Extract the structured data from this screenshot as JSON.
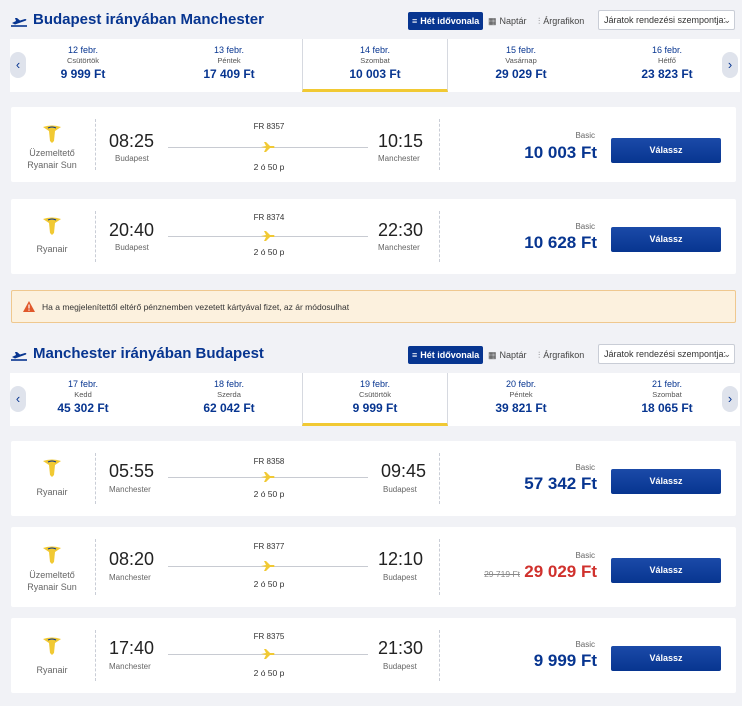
{
  "sections": [
    {
      "title": "Budapest irányában Manchester",
      "views": [
        "Hét idővonala",
        "Naptár",
        "Árgrafikon"
      ],
      "sort_label": "Járatok rendezési szempontja:",
      "dates": [
        {
          "date": "12 febr.",
          "weekday": "Csütörtök",
          "price": "9 999 Ft"
        },
        {
          "date": "13 febr.",
          "weekday": "Péntek",
          "price": "17 409 Ft"
        },
        {
          "date": "14 febr.",
          "weekday": "Szombat",
          "price": "10 003 Ft"
        },
        {
          "date": "15 febr.",
          "weekday": "Vasárnap",
          "price": "29 029 Ft"
        },
        {
          "date": "16 febr.",
          "weekday": "Hétfő",
          "price": "23 823 Ft"
        }
      ],
      "selected_date_index": 2,
      "flights": [
        {
          "operator_line1": "Üzemeltető",
          "operator_line2": "Ryanair Sun",
          "dep_time": "08:25",
          "dep_city": "Budapest",
          "flight_no": "FR 8357",
          "duration": "2 ó 50 p",
          "arr_time": "10:15",
          "arr_city": "Manchester",
          "fare": "Basic",
          "price": "10 003 Ft",
          "old_price": "",
          "button": "Válassz"
        },
        {
          "operator_line1": "",
          "operator_line2": "Ryanair",
          "dep_time": "20:40",
          "dep_city": "Budapest",
          "flight_no": "FR 8374",
          "duration": "2 ó 50 p",
          "arr_time": "22:30",
          "arr_city": "Manchester",
          "fare": "Basic",
          "price": "10 628 Ft",
          "old_price": "",
          "button": "Válassz"
        }
      ]
    },
    {
      "title": "Manchester irányában Budapest",
      "views": [
        "Hét idővonala",
        "Naptár",
        "Árgrafikon"
      ],
      "sort_label": "Járatok rendezési szempontja:",
      "dates": [
        {
          "date": "17 febr.",
          "weekday": "Kedd",
          "price": "45 302 Ft"
        },
        {
          "date": "18 febr.",
          "weekday": "Szerda",
          "price": "62 042 Ft"
        },
        {
          "date": "19 febr.",
          "weekday": "Csütörtök",
          "price": "9 999 Ft"
        },
        {
          "date": "20 febr.",
          "weekday": "Péntek",
          "price": "39 821 Ft"
        },
        {
          "date": "21 febr.",
          "weekday": "Szombat",
          "price": "18 065 Ft"
        }
      ],
      "selected_date_index": 2,
      "flights": [
        {
          "operator_line1": "",
          "operator_line2": "Ryanair",
          "dep_time": "05:55",
          "dep_city": "Manchester",
          "flight_no": "FR 8358",
          "duration": "2 ó 50 p",
          "arr_time": "09:45",
          "arr_city": "Budapest",
          "fare": "Basic",
          "price": "57 342 Ft",
          "old_price": "",
          "button": "Válassz"
        },
        {
          "operator_line1": "Üzemeltető",
          "operator_line2": "Ryanair Sun",
          "dep_time": "08:20",
          "dep_city": "Manchester",
          "flight_no": "FR 8377",
          "duration": "2 ó 50 p",
          "arr_time": "12:10",
          "arr_city": "Budapest",
          "fare": "Basic",
          "price": "29 029 Ft",
          "old_price": "29 719 Ft",
          "button": "Válassz"
        },
        {
          "operator_line1": "",
          "operator_line2": "Ryanair",
          "dep_time": "17:40",
          "dep_city": "Manchester",
          "flight_no": "FR 8375",
          "duration": "2 ó 50 p",
          "arr_time": "21:30",
          "arr_city": "Budapest",
          "fare": "Basic",
          "price": "9 999 Ft",
          "old_price": "",
          "button": "Válassz"
        }
      ]
    }
  ],
  "notice": "Ha a megjelenítettől eltérő pénznemben vezetett kártyával fizet, az ár módosulhat",
  "colors": {
    "brand": "#073590",
    "accent": "#f1c933",
    "sale": "#d0312d"
  }
}
